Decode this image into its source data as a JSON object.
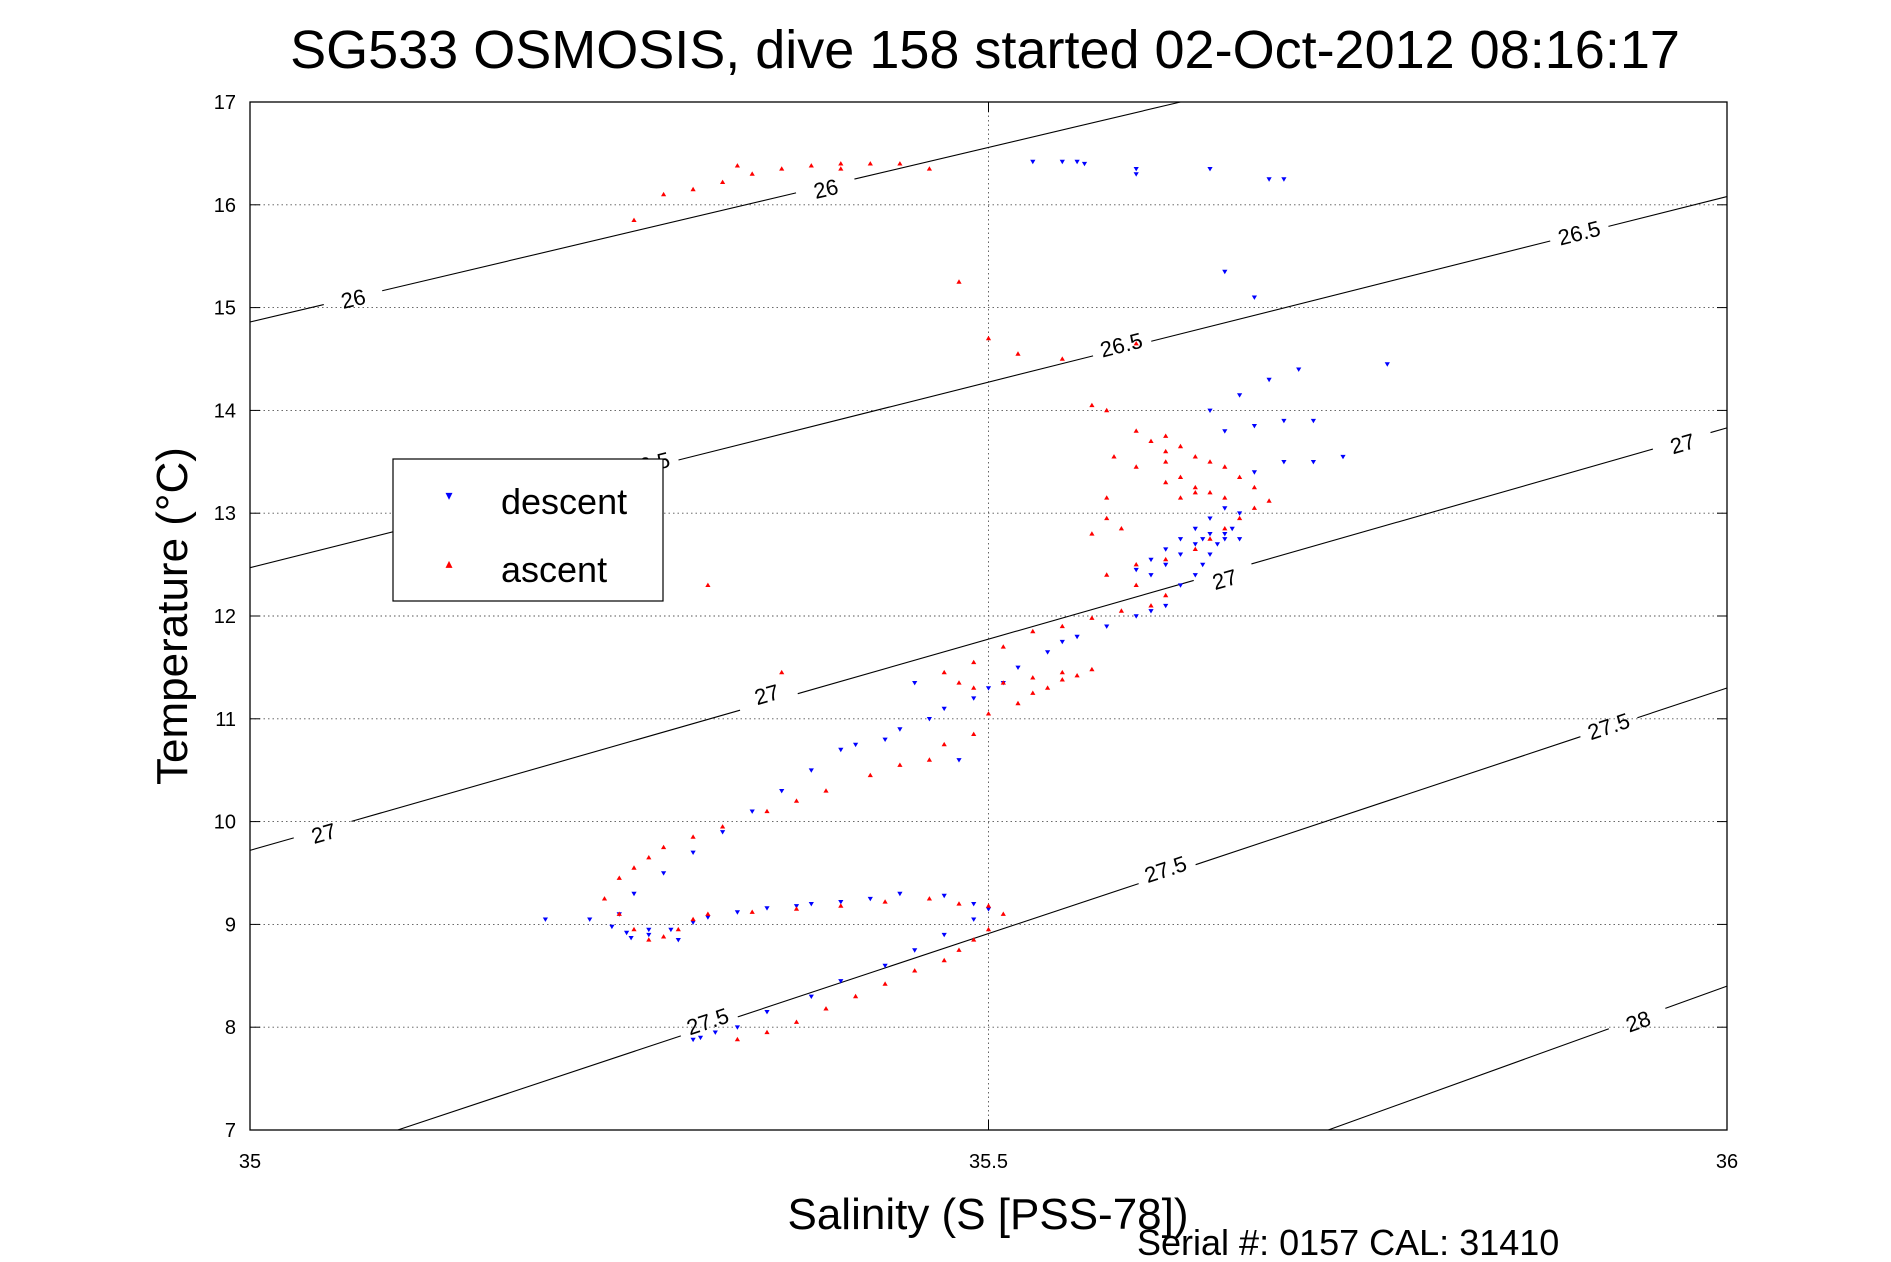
{
  "chart_data": {
    "type": "scatter",
    "title": "SG533 OSMOSIS, dive 158 started 02-Oct-2012 08:16:17",
    "xlabel": "Salinity (S [PSS-78])",
    "ylabel": "Temperature (°C)",
    "xlim": [
      35,
      36
    ],
    "ylim": [
      7,
      17
    ],
    "xticks": [
      "35",
      "35.5",
      "36"
    ],
    "yticks": [
      "7",
      "8",
      "9",
      "10",
      "11",
      "12",
      "13",
      "14",
      "15",
      "16",
      "17"
    ],
    "grid": true,
    "legend_position": "upper-left",
    "footer": "Serial #: 0157  CAL: 31410",
    "density_contours": [
      {
        "label": "26",
        "points": [
          [
            35.0,
            14.86
          ],
          [
            35.63,
            17.0
          ]
        ],
        "label_positions": [
          [
            35.07,
            15.08
          ],
          [
            35.39,
            16.15
          ]
        ]
      },
      {
        "label": "26.5",
        "points": [
          [
            35.0,
            12.47
          ],
          [
            36.0,
            16.08
          ]
        ],
        "label_positions": [
          [
            35.27,
            13.47
          ],
          [
            35.59,
            14.63
          ],
          [
            35.9,
            15.72
          ]
        ]
      },
      {
        "label": "27",
        "points": [
          [
            35.0,
            9.72
          ],
          [
            36.0,
            13.83
          ]
        ],
        "label_positions": [
          [
            35.05,
            9.88
          ],
          [
            35.35,
            11.23
          ],
          [
            35.66,
            12.35
          ],
          [
            35.97,
            13.67
          ]
        ]
      },
      {
        "label": "27.5",
        "points": [
          [
            35.1,
            7.0
          ],
          [
            36.0,
            11.3
          ]
        ],
        "label_positions": [
          [
            35.31,
            8.05
          ],
          [
            35.62,
            9.53
          ],
          [
            35.92,
            10.92
          ]
        ]
      },
      {
        "label": "28",
        "points": [
          [
            35.73,
            7.0
          ],
          [
            36.0,
            8.4
          ]
        ],
        "label_positions": [
          [
            35.94,
            8.05
          ]
        ]
      }
    ],
    "series": [
      {
        "name": "descent",
        "color": "#0000ff",
        "marker": "triangle-down",
        "x": [
          35.2,
          35.23,
          35.245,
          35.255,
          35.258,
          35.27,
          35.285,
          35.3,
          35.31,
          35.33,
          35.35,
          35.37,
          35.38,
          35.4,
          35.42,
          35.44,
          35.47,
          35.49,
          35.5,
          35.49,
          35.47,
          35.45,
          35.43,
          35.4,
          35.38,
          35.35,
          35.33,
          35.315,
          35.305,
          35.3,
          35.29,
          35.27,
          35.25,
          35.26,
          35.28,
          35.3,
          35.32,
          35.34,
          35.36,
          35.38,
          35.4,
          35.41,
          35.43,
          35.44,
          35.46,
          35.47,
          35.49,
          35.5,
          35.51,
          35.52,
          35.54,
          35.55,
          35.56,
          35.58,
          35.6,
          35.61,
          35.62,
          35.63,
          35.64,
          35.645,
          35.65,
          35.655,
          35.66,
          35.665,
          35.67,
          35.66,
          35.65,
          35.64,
          35.63,
          35.62,
          35.61,
          35.6,
          35.61,
          35.62,
          35.63,
          35.64,
          35.645,
          35.65,
          35.66,
          35.67,
          35.68,
          35.7,
          35.72,
          35.74,
          35.66,
          35.68,
          35.7,
          35.72,
          35.65,
          35.67,
          35.69,
          35.71,
          35.77,
          35.68,
          35.66,
          35.69,
          35.6,
          35.53,
          35.55,
          35.56,
          35.565,
          35.6,
          35.65,
          35.7,
          35.45,
          35.48
        ],
        "y": [
          9.05,
          9.05,
          8.98,
          8.92,
          8.87,
          8.9,
          8.95,
          9.02,
          9.07,
          9.12,
          9.16,
          9.18,
          9.2,
          9.22,
          9.25,
          9.3,
          9.28,
          9.2,
          9.15,
          9.05,
          8.9,
          8.75,
          8.6,
          8.45,
          8.3,
          8.15,
          8.0,
          7.95,
          7.9,
          7.88,
          8.85,
          8.95,
          9.1,
          9.3,
          9.5,
          9.7,
          9.9,
          10.1,
          10.3,
          10.5,
          10.7,
          10.75,
          10.8,
          10.9,
          11.0,
          11.1,
          11.2,
          11.3,
          11.35,
          11.5,
          11.65,
          11.75,
          11.8,
          11.9,
          12.0,
          12.05,
          12.1,
          12.3,
          12.4,
          12.5,
          12.6,
          12.7,
          12.75,
          12.85,
          13.0,
          13.05,
          12.95,
          12.85,
          12.75,
          12.65,
          12.55,
          12.45,
          12.4,
          12.5,
          12.6,
          12.7,
          12.75,
          12.8,
          12.8,
          12.75,
          13.4,
          13.5,
          13.5,
          13.55,
          13.8,
          13.85,
          13.9,
          13.9,
          14.0,
          14.15,
          14.3,
          14.4,
          14.45,
          15.1,
          15.35,
          16.25,
          16.35,
          16.42,
          16.42,
          16.42,
          16.4,
          16.3,
          16.35,
          16.25,
          11.35,
          10.6
        ],
        "marker_mark": "▾"
      },
      {
        "name": "ascent",
        "color": "#ff0000",
        "marker": "triangle-up",
        "x": [
          35.33,
          35.35,
          35.37,
          35.39,
          35.41,
          35.43,
          35.45,
          35.47,
          35.48,
          35.49,
          35.5,
          35.51,
          35.5,
          35.48,
          35.46,
          35.43,
          35.4,
          35.37,
          35.34,
          35.31,
          35.3,
          35.29,
          35.28,
          35.27,
          35.26,
          35.25,
          35.24,
          35.25,
          35.26,
          35.27,
          35.28,
          35.3,
          35.32,
          35.35,
          35.37,
          35.39,
          35.42,
          35.44,
          35.46,
          35.47,
          35.49,
          35.5,
          35.52,
          35.53,
          35.54,
          35.55,
          35.56,
          35.57,
          35.55,
          35.53,
          35.51,
          35.49,
          35.48,
          35.47,
          35.49,
          35.51,
          35.53,
          35.55,
          35.57,
          35.59,
          35.61,
          35.62,
          35.6,
          35.58,
          35.6,
          35.62,
          35.64,
          35.65,
          35.66,
          35.67,
          35.68,
          35.69,
          35.66,
          35.64,
          35.63,
          35.62,
          35.62,
          35.61,
          35.6,
          35.62,
          35.63,
          35.64,
          35.65,
          35.66,
          35.67,
          35.68,
          35.58,
          35.57,
          35.585,
          35.6,
          35.62,
          35.64,
          35.58,
          35.58,
          35.59,
          35.57,
          35.55,
          35.52,
          35.5,
          35.48,
          35.46,
          35.44,
          35.42,
          35.4,
          35.38,
          35.36,
          35.34,
          35.32,
          35.3,
          35.28,
          35.26,
          35.33,
          35.4,
          35.31,
          35.36,
          35.63,
          35.65,
          35.6
        ],
        "y": [
          7.88,
          7.95,
          8.05,
          8.18,
          8.3,
          8.42,
          8.55,
          8.65,
          8.75,
          8.85,
          8.95,
          9.1,
          9.18,
          9.2,
          9.25,
          9.22,
          9.18,
          9.15,
          9.12,
          9.1,
          9.05,
          8.95,
          8.88,
          8.85,
          8.95,
          9.1,
          9.25,
          9.45,
          9.55,
          9.65,
          9.75,
          9.85,
          9.95,
          10.1,
          10.2,
          10.3,
          10.45,
          10.55,
          10.6,
          10.75,
          10.85,
          11.05,
          11.15,
          11.25,
          11.3,
          11.38,
          11.42,
          11.48,
          11.45,
          11.4,
          11.35,
          11.3,
          11.35,
          11.45,
          11.55,
          11.7,
          11.85,
          11.9,
          11.98,
          12.05,
          12.1,
          12.2,
          12.3,
          12.4,
          12.5,
          12.55,
          12.65,
          12.75,
          12.85,
          12.95,
          13.05,
          13.12,
          13.15,
          13.25,
          13.35,
          13.5,
          13.6,
          13.7,
          13.8,
          13.75,
          13.65,
          13.55,
          13.5,
          13.45,
          13.35,
          13.25,
          14.0,
          14.05,
          13.55,
          13.45,
          13.3,
          13.2,
          13.15,
          12.95,
          12.85,
          12.8,
          14.5,
          14.55,
          14.7,
          15.25,
          16.35,
          16.4,
          16.4,
          16.4,
          16.38,
          16.35,
          16.3,
          16.22,
          16.15,
          16.1,
          15.85,
          16.38,
          16.35,
          12.3,
          11.45,
          13.15,
          13.2,
          14.65
        ],
        "marker_mark": "▴"
      }
    ]
  }
}
